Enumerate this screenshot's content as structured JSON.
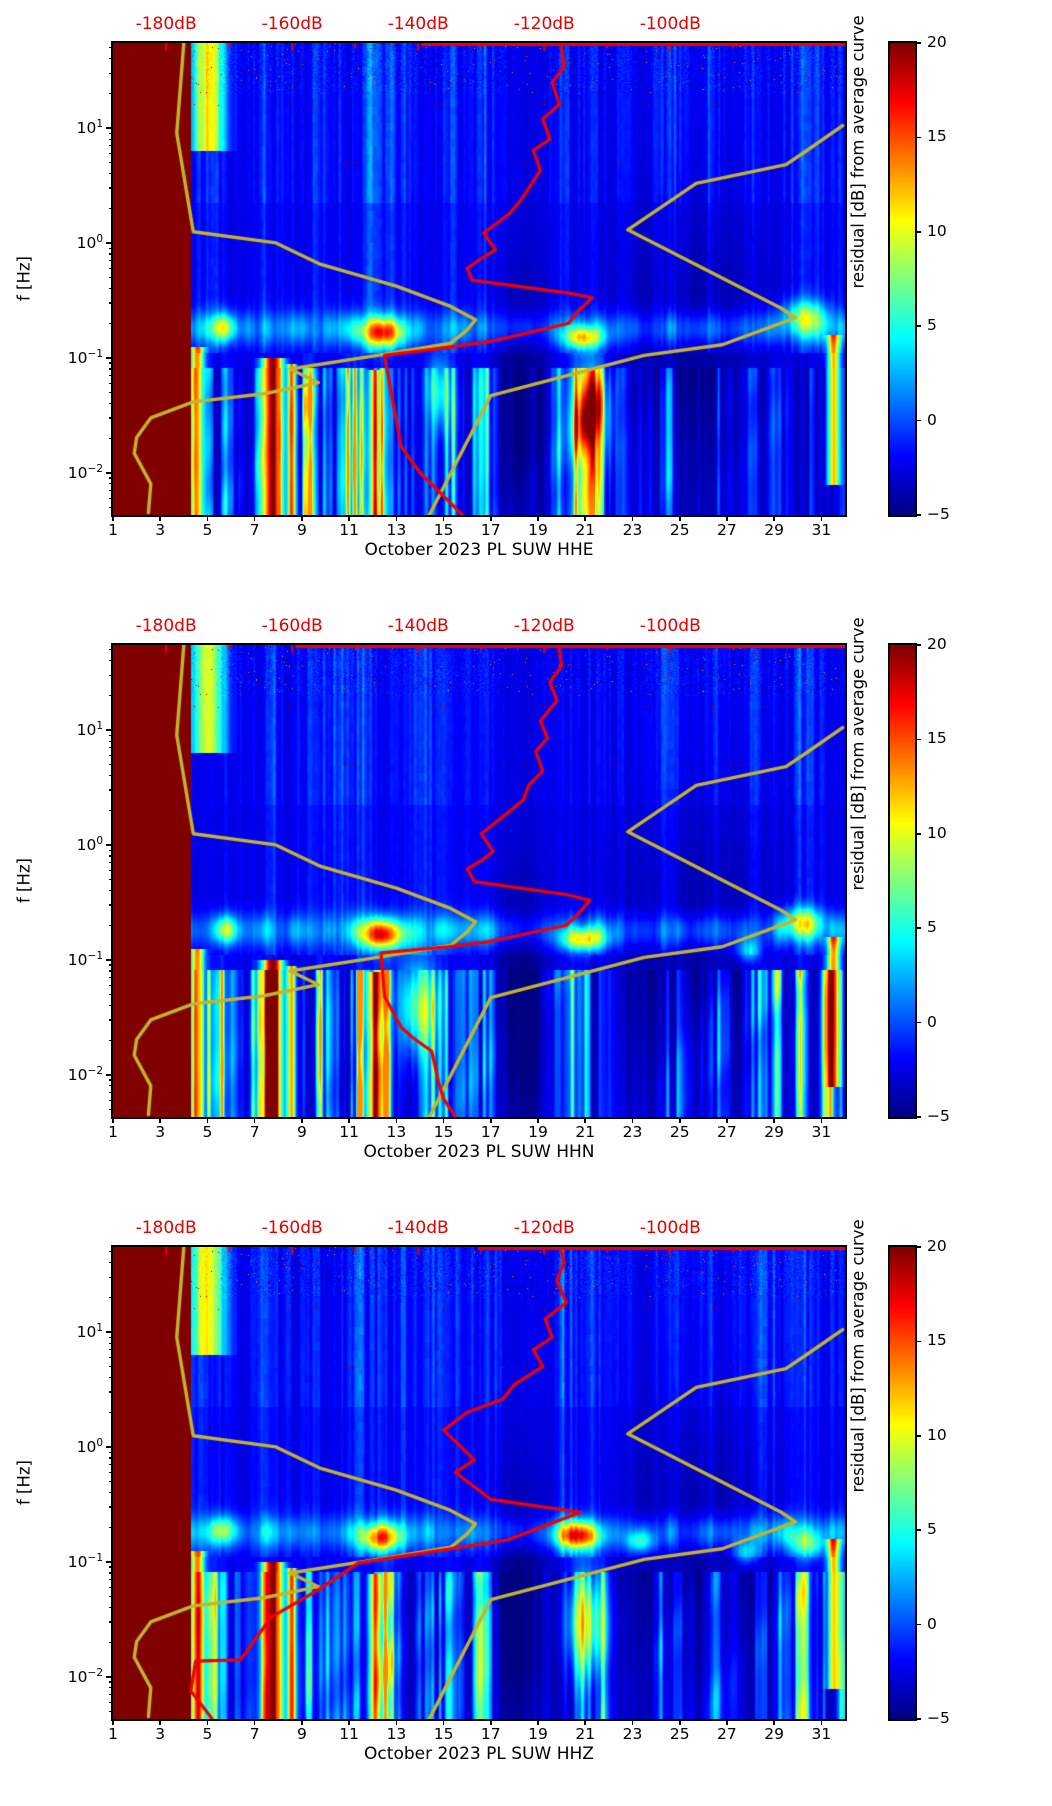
{
  "figure": {
    "description": "Three stacked day-frequency spectrogram panels of PSD residuals for station PL SUW, October 2023, channels HHE/HHN/HHZ, with jet colormap colorbar and overlaid median PSD curve (red) and noise model curves (yellow).",
    "ylabel": "f [Hz]",
    "colorbar_label": "residual [dB] from average curve"
  },
  "chart_data": {
    "type": "heatmap",
    "colormap": "jet",
    "value_range": [
      -5,
      20
    ],
    "x_range_days": [
      1,
      32
    ],
    "y_range_hz": [
      0.00429,
      54.9
    ],
    "y_scale": "log",
    "xticks": [
      "1",
      "3",
      "5",
      "7",
      "9",
      "11",
      "13",
      "15",
      "17",
      "19",
      "21",
      "23",
      "25",
      "27",
      "29",
      "31"
    ],
    "yticks": [
      {
        "base": "10",
        "exp": "1",
        "value": 10
      },
      {
        "base": "10",
        "exp": "0",
        "value": 1
      },
      {
        "base": "10",
        "exp": "−1",
        "value": 0.1
      },
      {
        "base": "10",
        "exp": "−2",
        "value": 0.01
      }
    ],
    "ylabel": "f [Hz]",
    "top_axis": {
      "color": "#e60000",
      "tick_labels": [
        "-180dB",
        "-160dB",
        "-140dB",
        "-120dB",
        "-100dB"
      ],
      "tick_dB": [
        -180,
        -160,
        -140,
        -120,
        -100
      ],
      "minor_tick_dB": [
        -170,
        -150,
        -130,
        -110,
        -90
      ],
      "dB_ref": -180,
      "day_at_ref": 3.25,
      "days_per_dB": 0.26687
    },
    "colorbar": {
      "label": "residual [dB] from average curve",
      "ticks": [
        "20",
        "15",
        "10",
        "5",
        "0",
        "−5"
      ],
      "tick_values": [
        20,
        15,
        10,
        5,
        0,
        -5
      ],
      "range": [
        -5,
        20
      ]
    },
    "masked_region": {
      "day_start": 1,
      "day_end": 4.28,
      "color": "#800000"
    },
    "noise_models": {
      "color": "#c3b42e",
      "nlnm_day_f": [
        [
          2.5,
          0.0045
        ],
        [
          2.6,
          0.008
        ],
        [
          1.9,
          0.0148
        ],
        [
          2.0,
          0.0203
        ],
        [
          2.6,
          0.03
        ],
        [
          4.4,
          0.0414
        ],
        [
          7.4,
          0.0487
        ],
        [
          9.7,
          0.0608
        ],
        [
          8.5,
          0.08
        ],
        [
          12.2,
          0.105
        ],
        [
          15.3,
          0.134
        ],
        [
          16.0,
          0.175
        ],
        [
          16.35,
          0.214
        ],
        [
          15.3,
          0.28
        ],
        [
          13.0,
          0.42
        ],
        [
          9.8,
          0.65
        ],
        [
          7.9,
          1.0
        ],
        [
          4.4,
          1.25
        ],
        [
          3.7,
          9.0
        ],
        [
          4.0,
          55
        ]
      ],
      "nhnm_day_f": [
        [
          14.4,
          0.0043
        ],
        [
          17.0,
          0.047
        ],
        [
          23.5,
          0.105
        ],
        [
          26.8,
          0.13
        ],
        [
          29.9,
          0.223
        ],
        [
          29.3,
          0.27
        ],
        [
          22.8,
          1.3
        ],
        [
          25.7,
          3.3
        ],
        [
          29.5,
          4.8
        ],
        [
          30.4,
          6.4
        ],
        [
          31.9,
          10.5
        ]
      ]
    },
    "panels": [
      {
        "channel": "HHE",
        "xlabel": "October 2023 PL SUW  HHE",
        "median_curve_color": "#f20000",
        "median_curve_day_f": [
          [
            15.8,
            0.0043
          ],
          [
            14.0,
            0.01
          ],
          [
            13.2,
            0.017
          ],
          [
            12.9,
            0.037
          ],
          [
            12.6,
            0.08
          ],
          [
            12.5,
            0.105
          ],
          [
            15.3,
            0.124
          ],
          [
            17.2,
            0.142
          ],
          [
            20.3,
            0.2
          ],
          [
            20.6,
            0.244
          ],
          [
            21.3,
            0.335
          ],
          [
            20.3,
            0.366
          ],
          [
            16.2,
            0.475
          ],
          [
            16.0,
            0.6
          ],
          [
            16.5,
            0.71
          ],
          [
            17.2,
            0.87
          ],
          [
            16.7,
            1.22
          ],
          [
            17.8,
            1.8
          ],
          [
            18.3,
            2.4
          ],
          [
            18.7,
            3.2
          ],
          [
            19.1,
            4.3
          ],
          [
            18.8,
            6.4
          ],
          [
            19.5,
            8.0
          ],
          [
            19.2,
            12
          ],
          [
            19.9,
            16
          ],
          [
            19.6,
            25
          ],
          [
            20.1,
            34
          ],
          [
            20.0,
            50
          ]
        ],
        "top_line_start_day": 14.1,
        "seed": 11,
        "hotspots": [
          {
            "day": 12.4,
            "f": 0.165,
            "amp": 14,
            "sd": 0.9,
            "sf": 0.13
          },
          {
            "day": 5.7,
            "f": 0.185,
            "amp": 8,
            "sd": 0.5,
            "sf": 0.12
          },
          {
            "day": 20.9,
            "f": 0.15,
            "amp": 12,
            "sd": 0.8,
            "sf": 0.1
          },
          {
            "day": 30.3,
            "f": 0.24,
            "amp": 8,
            "sd": 0.9,
            "sf": 0.14
          },
          {
            "day": 21.2,
            "f": 0.03,
            "amp": 11,
            "sd": 0.8,
            "sf": 0.42
          },
          {
            "day": 14.8,
            "f": 0.05,
            "amp": 7,
            "sd": 0.5,
            "sf": 0.3
          }
        ]
      },
      {
        "channel": "HHN",
        "xlabel": "October 2023 PL SUW  HHN",
        "median_curve_color": "#f20000",
        "median_curve_day_f": [
          [
            15.5,
            0.0043
          ],
          [
            15.0,
            0.0062
          ],
          [
            14.8,
            0.0084
          ],
          [
            14.5,
            0.016
          ],
          [
            13.7,
            0.021
          ],
          [
            13.2,
            0.026
          ],
          [
            12.5,
            0.048
          ],
          [
            12.35,
            0.115
          ],
          [
            15.2,
            0.13
          ],
          [
            17.0,
            0.145
          ],
          [
            20.2,
            0.2
          ],
          [
            20.7,
            0.25
          ],
          [
            21.2,
            0.33
          ],
          [
            20.2,
            0.37
          ],
          [
            16.3,
            0.48
          ],
          [
            16.0,
            0.62
          ],
          [
            16.6,
            0.73
          ],
          [
            17.1,
            0.88
          ],
          [
            16.6,
            1.25
          ],
          [
            17.7,
            1.9
          ],
          [
            18.4,
            2.5
          ],
          [
            18.6,
            3.3
          ],
          [
            19.2,
            4.4
          ],
          [
            18.9,
            6.5
          ],
          [
            19.4,
            8.5
          ],
          [
            19.1,
            12
          ],
          [
            19.8,
            18
          ],
          [
            19.5,
            26
          ],
          [
            20.0,
            36
          ],
          [
            19.9,
            50
          ]
        ],
        "top_line_start_day": 8.8,
        "seed": 22,
        "hotspots": [
          {
            "day": 12.4,
            "f": 0.165,
            "amp": 15,
            "sd": 0.85,
            "sf": 0.13
          },
          {
            "day": 5.7,
            "f": 0.185,
            "amp": 8,
            "sd": 0.5,
            "sf": 0.12
          },
          {
            "day": 20.9,
            "f": 0.15,
            "amp": 12,
            "sd": 0.9,
            "sf": 0.1
          },
          {
            "day": 30.2,
            "f": 0.22,
            "amp": 9,
            "sd": 0.8,
            "sf": 0.13
          },
          {
            "day": 13.8,
            "f": 0.04,
            "amp": 9,
            "sd": 0.8,
            "sf": 0.4
          },
          {
            "day": 27.9,
            "f": 0.12,
            "amp": 6,
            "sd": 0.5,
            "sf": 0.1
          }
        ]
      },
      {
        "channel": "HHZ",
        "xlabel": "October 2023 PL SUW  HHZ",
        "median_curve_color": "#f20000",
        "median_curve_day_f": [
          [
            5.2,
            0.0043
          ],
          [
            4.3,
            0.0075
          ],
          [
            4.5,
            0.0137
          ],
          [
            6.4,
            0.014
          ],
          [
            7.7,
            0.033
          ],
          [
            9.7,
            0.057
          ],
          [
            11.4,
            0.098
          ],
          [
            17.7,
            0.155
          ],
          [
            20.8,
            0.27
          ],
          [
            17.0,
            0.35
          ],
          [
            15.5,
            0.6
          ],
          [
            16.3,
            0.77
          ],
          [
            15.0,
            1.4
          ],
          [
            16.0,
            2.0
          ],
          [
            17.5,
            2.6
          ],
          [
            18.0,
            3.5
          ],
          [
            19.2,
            5.0
          ],
          [
            18.8,
            7.0
          ],
          [
            19.6,
            9.0
          ],
          [
            19.3,
            13
          ],
          [
            20.2,
            18
          ],
          [
            19.8,
            28
          ],
          [
            20.1,
            40
          ],
          [
            20.0,
            50
          ]
        ],
        "top_line_start_day": 16.5,
        "seed": 33,
        "hotspots": [
          {
            "day": 20.7,
            "f": 0.17,
            "amp": 15,
            "sd": 0.9,
            "sf": 0.12
          },
          {
            "day": 12.3,
            "f": 0.16,
            "amp": 13,
            "sd": 0.8,
            "sf": 0.12
          },
          {
            "day": 5.7,
            "f": 0.19,
            "amp": 7,
            "sd": 0.5,
            "sf": 0.12
          },
          {
            "day": 23.3,
            "f": 0.15,
            "amp": 7,
            "sd": 0.6,
            "sf": 0.1
          },
          {
            "day": 30.4,
            "f": 0.14,
            "amp": 7,
            "sd": 0.7,
            "sf": 0.12
          },
          {
            "day": 21.0,
            "f": 0.03,
            "amp": 10,
            "sd": 0.8,
            "sf": 0.42
          },
          {
            "day": 27.8,
            "f": 0.12,
            "amp": 6,
            "sd": 0.5,
            "sf": 0.1
          }
        ]
      }
    ],
    "shared_texture": {
      "dark_columns": [
        {
          "day": 7.75,
          "sd": 0.3,
          "amp": 22,
          "lfmin": -2.4,
          "lfmax": -1.0
        },
        {
          "day": 8.55,
          "sd": 0.12,
          "amp": 16,
          "lfmin": -2.4,
          "lfmax": -1.05
        },
        {
          "day": 12.05,
          "sd": 0.15,
          "amp": 14,
          "lfmin": -2.4,
          "lfmax": -1.1
        },
        {
          "day": 4.55,
          "sd": 0.2,
          "amp": 16,
          "lfmin": -2.4,
          "lfmax": -0.9
        },
        {
          "day": 31.5,
          "sd": 0.18,
          "amp": 15,
          "lfmin": -2.1,
          "lfmax": -0.8
        },
        {
          "day": 5.0,
          "sd": 0.5,
          "amp": 12,
          "lfmin": 0.8,
          "lfmax": 1.74
        }
      ],
      "loud_days": [
        5.3,
        7.6,
        9.4,
        11.2,
        12.3,
        14.9,
        16.8,
        20.3,
        21.4,
        24.6,
        26.4,
        28.4,
        29.4,
        30.2,
        31.3
      ],
      "dark_regions": [
        {
          "day": 25.6,
          "sd": 2.6,
          "lf": -0.7,
          "slf": 0.8,
          "amp": 1.6
        },
        {
          "day": 18.2,
          "sd": 0.9,
          "lf": -1.4,
          "slf": 0.8,
          "amp": 2.2
        }
      ]
    }
  }
}
